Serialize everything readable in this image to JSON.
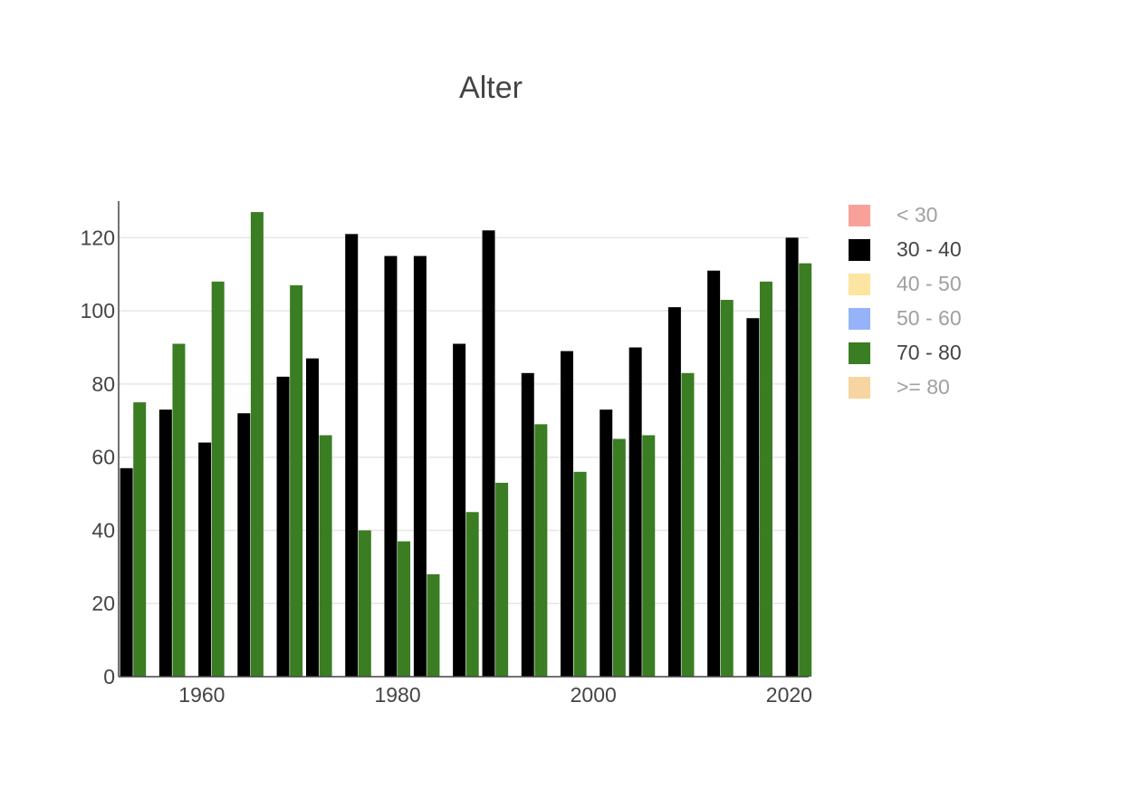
{
  "chart_data": {
    "type": "bar",
    "title": "Alter",
    "xlabel": "",
    "ylabel": "",
    "xlim": [
      1951.5,
      2022
    ],
    "ylim": [
      0,
      130
    ],
    "x_ticks": [
      1960,
      1980,
      2000,
      2020
    ],
    "y_ticks": [
      0,
      20,
      40,
      60,
      80,
      100,
      120
    ],
    "grid": "horizontal",
    "legend_position": "right",
    "legend": [
      {
        "name": "< 30",
        "color": "#f8a19a",
        "active": false
      },
      {
        "name": "30 - 40",
        "color": "#000000",
        "active": true
      },
      {
        "name": "40 - 50",
        "color": "#fbe5a0",
        "active": false
      },
      {
        "name": "50 - 60",
        "color": "#96b3fa",
        "active": false
      },
      {
        "name": "70 - 80",
        "color": "#3a7d23",
        "active": true
      },
      {
        "name": ">= 80",
        "color": "#f7d5a0",
        "active": false
      }
    ],
    "x": [
      1953,
      1957,
      1961,
      1965,
      1969,
      1972,
      1976,
      1980,
      1983,
      1987,
      1990,
      1994,
      1998,
      2002,
      2005,
      2009,
      2013,
      2017,
      2021
    ],
    "series": [
      {
        "name": "30 - 40",
        "color": "#000000",
        "values": [
          57,
          73,
          64,
          72,
          82,
          87,
          121,
          115,
          115,
          91,
          122,
          83,
          89,
          73,
          90,
          101,
          111,
          98,
          120
        ]
      },
      {
        "name": "70 - 80",
        "color": "#3a7d23",
        "values": [
          75,
          91,
          108,
          127,
          107,
          66,
          40,
          37,
          28,
          45,
          53,
          69,
          56,
          65,
          66,
          83,
          103,
          108,
          113
        ]
      }
    ]
  }
}
